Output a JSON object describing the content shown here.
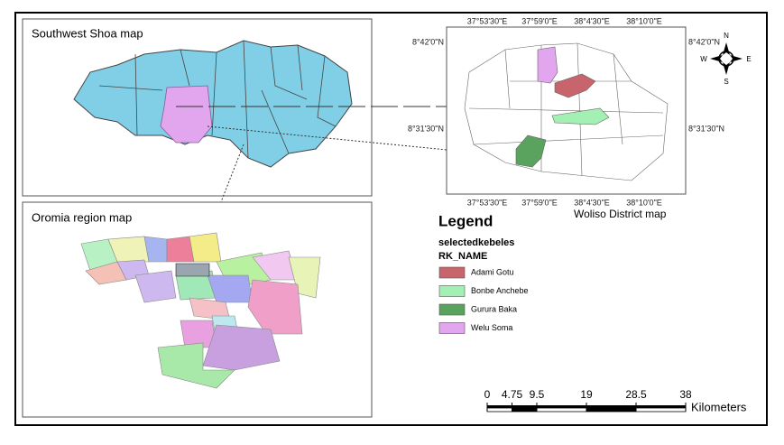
{
  "maps": {
    "southwest_shoa": {
      "title": "Southwest Shoa map"
    },
    "oromia": {
      "title": "Oromia region map"
    },
    "woliso": {
      "title": "Woliso District map",
      "lon_labels": [
        "37°53'30\"E",
        "37°59'0\"E",
        "38°4'30\"E",
        "38°10'0\"E"
      ],
      "lat_labels": [
        "8°42'0\"N",
        "8°31'30\"N"
      ]
    }
  },
  "compass": {
    "n": "N",
    "e": "E",
    "s": "S",
    "w": "W"
  },
  "legend": {
    "title": "Legend",
    "layer": "selectedkebeles",
    "field": "RK_NAME",
    "items": [
      {
        "label": "Adami Gotu",
        "color": "#c8646b"
      },
      {
        "label": "Bonbe Anchebe",
        "color": "#a4f0b4"
      },
      {
        "label": "Gurura Baka",
        "color": "#5aa35e"
      },
      {
        "label": "Welu Soma",
        "color": "#e1a6ee"
      }
    ]
  },
  "scale_bar": {
    "ticks": [
      0,
      4.75,
      9.5,
      19,
      28.5,
      38
    ],
    "unit": "Kilometers"
  }
}
